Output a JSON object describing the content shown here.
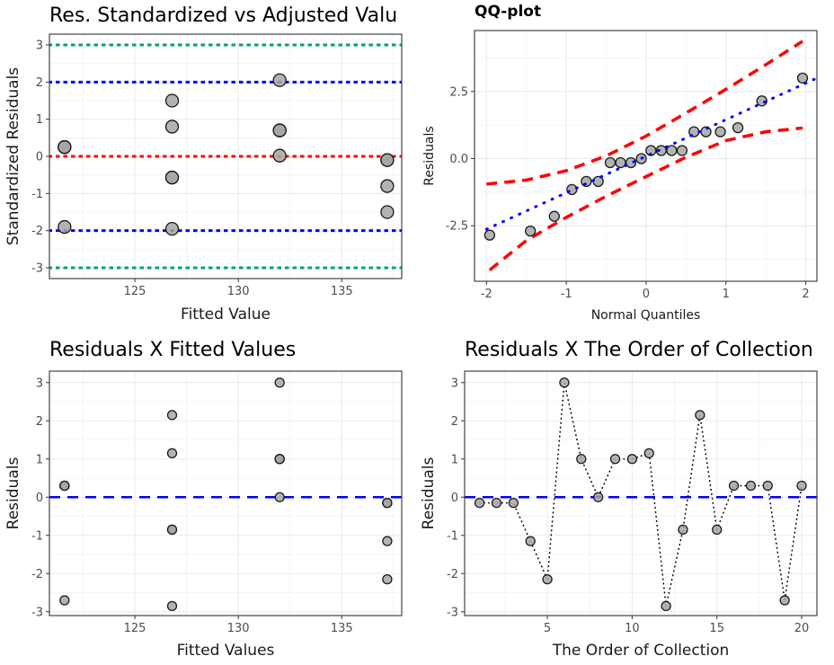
{
  "chart_data": [
    {
      "id": "std",
      "type": "scatter",
      "title": "Res. Standardized vs Adjusted Valu",
      "xlabel": "Fitted Value",
      "ylabel": "Standardized Residuals",
      "xlim": [
        120.87,
        137.9
      ],
      "ylim": [
        -3.29,
        3.29
      ],
      "xticks": [
        125,
        130,
        135
      ],
      "yticks": [
        -3,
        -2,
        -1,
        0,
        1,
        2,
        3
      ],
      "grid": true,
      "points": {
        "x": [
          121.6,
          121.6,
          121.6,
          121.6,
          121.6,
          126.8,
          126.8,
          126.8,
          126.8,
          126.8,
          132,
          132,
          132,
          132,
          132,
          137.2,
          137.2,
          137.2,
          137.2,
          137.2
        ],
        "y": [
          0.25,
          0.25,
          0.25,
          0.25,
          -1.9,
          1.5,
          0.8,
          -0.57,
          -0.57,
          -1.95,
          2.05,
          0.7,
          0.7,
          0.7,
          0.02,
          -0.1,
          -0.1,
          -0.1,
          -0.8,
          -1.5
        ]
      },
      "hlines": [
        {
          "y": 3,
          "color": "#00A36C",
          "style": "dotted"
        },
        {
          "y": 2,
          "color": "#0000FF",
          "style": "dotted"
        },
        {
          "y": 0,
          "color": "#FF0000",
          "style": "dotted"
        },
        {
          "y": -2,
          "color": "#0000FF",
          "style": "dotted"
        },
        {
          "y": -3,
          "color": "#00A36C",
          "style": "dotted"
        }
      ]
    },
    {
      "id": "qq",
      "type": "scatter",
      "title": "QQ-plot",
      "xlabel": "Normal Quantiles",
      "ylabel": "Residuals",
      "xlim": [
        -2.15,
        2.14
      ],
      "ylim": [
        -4.57,
        4.77
      ],
      "xticks": [
        -2,
        -1,
        0,
        1,
        2
      ],
      "yticks": [
        -2.5,
        0.0,
        2.5
      ],
      "ytick_labels": [
        "-2.5",
        "0.0",
        "2.5"
      ],
      "grid": true,
      "points": {
        "x": [
          -1.96,
          -1.45,
          -1.15,
          -0.93,
          -0.75,
          -0.6,
          -0.45,
          -0.32,
          -0.19,
          -0.06,
          0.06,
          0.19,
          0.32,
          0.45,
          0.6,
          0.75,
          0.93,
          1.15,
          1.45,
          1.96
        ],
        "y": [
          -2.85,
          -2.7,
          -2.15,
          -1.15,
          -0.85,
          -0.85,
          -0.15,
          -0.15,
          -0.15,
          0.0,
          0.3,
          0.3,
          0.3,
          0.3,
          1.0,
          1.0,
          1.0,
          1.15,
          2.15,
          3.0
        ]
      },
      "reference_line": {
        "x": [
          -2,
          2.14
        ],
        "y": [
          -2.63,
          3.0
        ],
        "color": "#0000FF",
        "style": "dotted"
      },
      "band_upper": {
        "x": [
          -2,
          -1.5,
          -1,
          -0.5,
          0,
          0.5,
          1,
          1.5,
          1.96
        ],
        "y": [
          -0.95,
          -0.8,
          -0.45,
          0.1,
          0.84,
          1.7,
          2.58,
          3.5,
          4.37
        ],
        "color": "#FF0000",
        "style": "dashed"
      },
      "band_lower": {
        "x": [
          -1.96,
          -1.5,
          -1,
          -0.5,
          0,
          0.5,
          1,
          1.5,
          1.96
        ],
        "y": [
          -4.15,
          -3.05,
          -2.19,
          -1.4,
          -0.67,
          0.05,
          0.67,
          1.0,
          1.14
        ],
        "color": "#FF0000",
        "style": "dashed"
      }
    },
    {
      "id": "fit",
      "type": "scatter",
      "title": "Residuals X Fitted Values",
      "xlabel": "Fitted Values",
      "ylabel": "Residuals",
      "xlim": [
        120.87,
        137.9
      ],
      "ylim": [
        -3.1,
        3.3
      ],
      "xticks": [
        125,
        130,
        135
      ],
      "yticks": [
        -3,
        -2,
        -1,
        0,
        1,
        2,
        3
      ],
      "grid": true,
      "points": {
        "x": [
          121.6,
          121.6,
          121.6,
          121.6,
          121.6,
          126.8,
          126.8,
          126.8,
          126.8,
          126.8,
          132,
          132,
          132,
          132,
          132,
          137.2,
          137.2,
          137.2,
          137.2,
          137.2
        ],
        "y": [
          0.3,
          0.3,
          0.3,
          0.3,
          -2.7,
          2.15,
          1.15,
          -0.85,
          -0.85,
          -2.85,
          3.0,
          1.0,
          1.0,
          1.0,
          0.0,
          -0.15,
          -0.15,
          -0.15,
          -1.15,
          -2.15
        ]
      },
      "hlines": [
        {
          "y": 0,
          "color": "#0000FF",
          "style": "dashed"
        }
      ]
    },
    {
      "id": "order",
      "type": "line",
      "title": "Residuals X The Order of Collection",
      "xlabel": "The Order of Collection",
      "ylabel": "Residuals",
      "xlim": [
        0.12,
        20.9
      ],
      "ylim": [
        -3.1,
        3.3
      ],
      "xticks": [
        5,
        10,
        15,
        20
      ],
      "yticks": [
        -3,
        -2,
        -1,
        0,
        1,
        2,
        3
      ],
      "grid": true,
      "points": {
        "x": [
          1,
          2,
          3,
          4,
          5,
          6,
          7,
          8,
          9,
          10,
          11,
          12,
          13,
          14,
          15,
          16,
          17,
          18,
          19,
          20
        ],
        "y": [
          -0.15,
          -0.15,
          -0.15,
          -1.15,
          -2.15,
          3.0,
          1.0,
          0.0,
          1.0,
          1.0,
          1.15,
          -2.85,
          -0.85,
          2.15,
          -0.85,
          0.3,
          0.3,
          0.3,
          -2.7,
          0.3
        ]
      },
      "connect_points": {
        "color": "#000000",
        "style": "dotted"
      },
      "hlines": [
        {
          "y": 0,
          "color": "#0000FF",
          "style": "dashed"
        }
      ]
    }
  ]
}
